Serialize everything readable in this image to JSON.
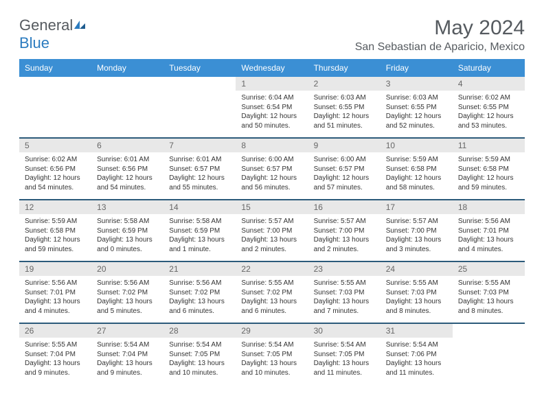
{
  "logo": {
    "word1": "General",
    "word2": "Blue"
  },
  "title": "May 2024",
  "location": "San Sebastian de Aparicio, Mexico",
  "colors": {
    "header_bg": "#3b8fd4",
    "header_fg": "#ffffff",
    "daynum_bg": "#e8e8e8",
    "daynum_fg": "#666666",
    "rule": "#2b5a7a",
    "logo_gray": "#555a5f",
    "logo_blue": "#2b7bbf"
  },
  "weekdays": [
    "Sunday",
    "Monday",
    "Tuesday",
    "Wednesday",
    "Thursday",
    "Friday",
    "Saturday"
  ],
  "weeks": [
    [
      {
        "n": "",
        "sr": "",
        "ss": "",
        "dl": ""
      },
      {
        "n": "",
        "sr": "",
        "ss": "",
        "dl": ""
      },
      {
        "n": "",
        "sr": "",
        "ss": "",
        "dl": ""
      },
      {
        "n": "1",
        "sr": "Sunrise: 6:04 AM",
        "ss": "Sunset: 6:54 PM",
        "dl": "Daylight: 12 hours and 50 minutes."
      },
      {
        "n": "2",
        "sr": "Sunrise: 6:03 AM",
        "ss": "Sunset: 6:55 PM",
        "dl": "Daylight: 12 hours and 51 minutes."
      },
      {
        "n": "3",
        "sr": "Sunrise: 6:03 AM",
        "ss": "Sunset: 6:55 PM",
        "dl": "Daylight: 12 hours and 52 minutes."
      },
      {
        "n": "4",
        "sr": "Sunrise: 6:02 AM",
        "ss": "Sunset: 6:55 PM",
        "dl": "Daylight: 12 hours and 53 minutes."
      }
    ],
    [
      {
        "n": "5",
        "sr": "Sunrise: 6:02 AM",
        "ss": "Sunset: 6:56 PM",
        "dl": "Daylight: 12 hours and 54 minutes."
      },
      {
        "n": "6",
        "sr": "Sunrise: 6:01 AM",
        "ss": "Sunset: 6:56 PM",
        "dl": "Daylight: 12 hours and 54 minutes."
      },
      {
        "n": "7",
        "sr": "Sunrise: 6:01 AM",
        "ss": "Sunset: 6:57 PM",
        "dl": "Daylight: 12 hours and 55 minutes."
      },
      {
        "n": "8",
        "sr": "Sunrise: 6:00 AM",
        "ss": "Sunset: 6:57 PM",
        "dl": "Daylight: 12 hours and 56 minutes."
      },
      {
        "n": "9",
        "sr": "Sunrise: 6:00 AM",
        "ss": "Sunset: 6:57 PM",
        "dl": "Daylight: 12 hours and 57 minutes."
      },
      {
        "n": "10",
        "sr": "Sunrise: 5:59 AM",
        "ss": "Sunset: 6:58 PM",
        "dl": "Daylight: 12 hours and 58 minutes."
      },
      {
        "n": "11",
        "sr": "Sunrise: 5:59 AM",
        "ss": "Sunset: 6:58 PM",
        "dl": "Daylight: 12 hours and 59 minutes."
      }
    ],
    [
      {
        "n": "12",
        "sr": "Sunrise: 5:59 AM",
        "ss": "Sunset: 6:58 PM",
        "dl": "Daylight: 12 hours and 59 minutes."
      },
      {
        "n": "13",
        "sr": "Sunrise: 5:58 AM",
        "ss": "Sunset: 6:59 PM",
        "dl": "Daylight: 13 hours and 0 minutes."
      },
      {
        "n": "14",
        "sr": "Sunrise: 5:58 AM",
        "ss": "Sunset: 6:59 PM",
        "dl": "Daylight: 13 hours and 1 minute."
      },
      {
        "n": "15",
        "sr": "Sunrise: 5:57 AM",
        "ss": "Sunset: 7:00 PM",
        "dl": "Daylight: 13 hours and 2 minutes."
      },
      {
        "n": "16",
        "sr": "Sunrise: 5:57 AM",
        "ss": "Sunset: 7:00 PM",
        "dl": "Daylight: 13 hours and 2 minutes."
      },
      {
        "n": "17",
        "sr": "Sunrise: 5:57 AM",
        "ss": "Sunset: 7:00 PM",
        "dl": "Daylight: 13 hours and 3 minutes."
      },
      {
        "n": "18",
        "sr": "Sunrise: 5:56 AM",
        "ss": "Sunset: 7:01 PM",
        "dl": "Daylight: 13 hours and 4 minutes."
      }
    ],
    [
      {
        "n": "19",
        "sr": "Sunrise: 5:56 AM",
        "ss": "Sunset: 7:01 PM",
        "dl": "Daylight: 13 hours and 4 minutes."
      },
      {
        "n": "20",
        "sr": "Sunrise: 5:56 AM",
        "ss": "Sunset: 7:02 PM",
        "dl": "Daylight: 13 hours and 5 minutes."
      },
      {
        "n": "21",
        "sr": "Sunrise: 5:56 AM",
        "ss": "Sunset: 7:02 PM",
        "dl": "Daylight: 13 hours and 6 minutes."
      },
      {
        "n": "22",
        "sr": "Sunrise: 5:55 AM",
        "ss": "Sunset: 7:02 PM",
        "dl": "Daylight: 13 hours and 6 minutes."
      },
      {
        "n": "23",
        "sr": "Sunrise: 5:55 AM",
        "ss": "Sunset: 7:03 PM",
        "dl": "Daylight: 13 hours and 7 minutes."
      },
      {
        "n": "24",
        "sr": "Sunrise: 5:55 AM",
        "ss": "Sunset: 7:03 PM",
        "dl": "Daylight: 13 hours and 8 minutes."
      },
      {
        "n": "25",
        "sr": "Sunrise: 5:55 AM",
        "ss": "Sunset: 7:03 PM",
        "dl": "Daylight: 13 hours and 8 minutes."
      }
    ],
    [
      {
        "n": "26",
        "sr": "Sunrise: 5:55 AM",
        "ss": "Sunset: 7:04 PM",
        "dl": "Daylight: 13 hours and 9 minutes."
      },
      {
        "n": "27",
        "sr": "Sunrise: 5:54 AM",
        "ss": "Sunset: 7:04 PM",
        "dl": "Daylight: 13 hours and 9 minutes."
      },
      {
        "n": "28",
        "sr": "Sunrise: 5:54 AM",
        "ss": "Sunset: 7:05 PM",
        "dl": "Daylight: 13 hours and 10 minutes."
      },
      {
        "n": "29",
        "sr": "Sunrise: 5:54 AM",
        "ss": "Sunset: 7:05 PM",
        "dl": "Daylight: 13 hours and 10 minutes."
      },
      {
        "n": "30",
        "sr": "Sunrise: 5:54 AM",
        "ss": "Sunset: 7:05 PM",
        "dl": "Daylight: 13 hours and 11 minutes."
      },
      {
        "n": "31",
        "sr": "Sunrise: 5:54 AM",
        "ss": "Sunset: 7:06 PM",
        "dl": "Daylight: 13 hours and 11 minutes."
      },
      {
        "n": "",
        "sr": "",
        "ss": "",
        "dl": ""
      }
    ]
  ]
}
